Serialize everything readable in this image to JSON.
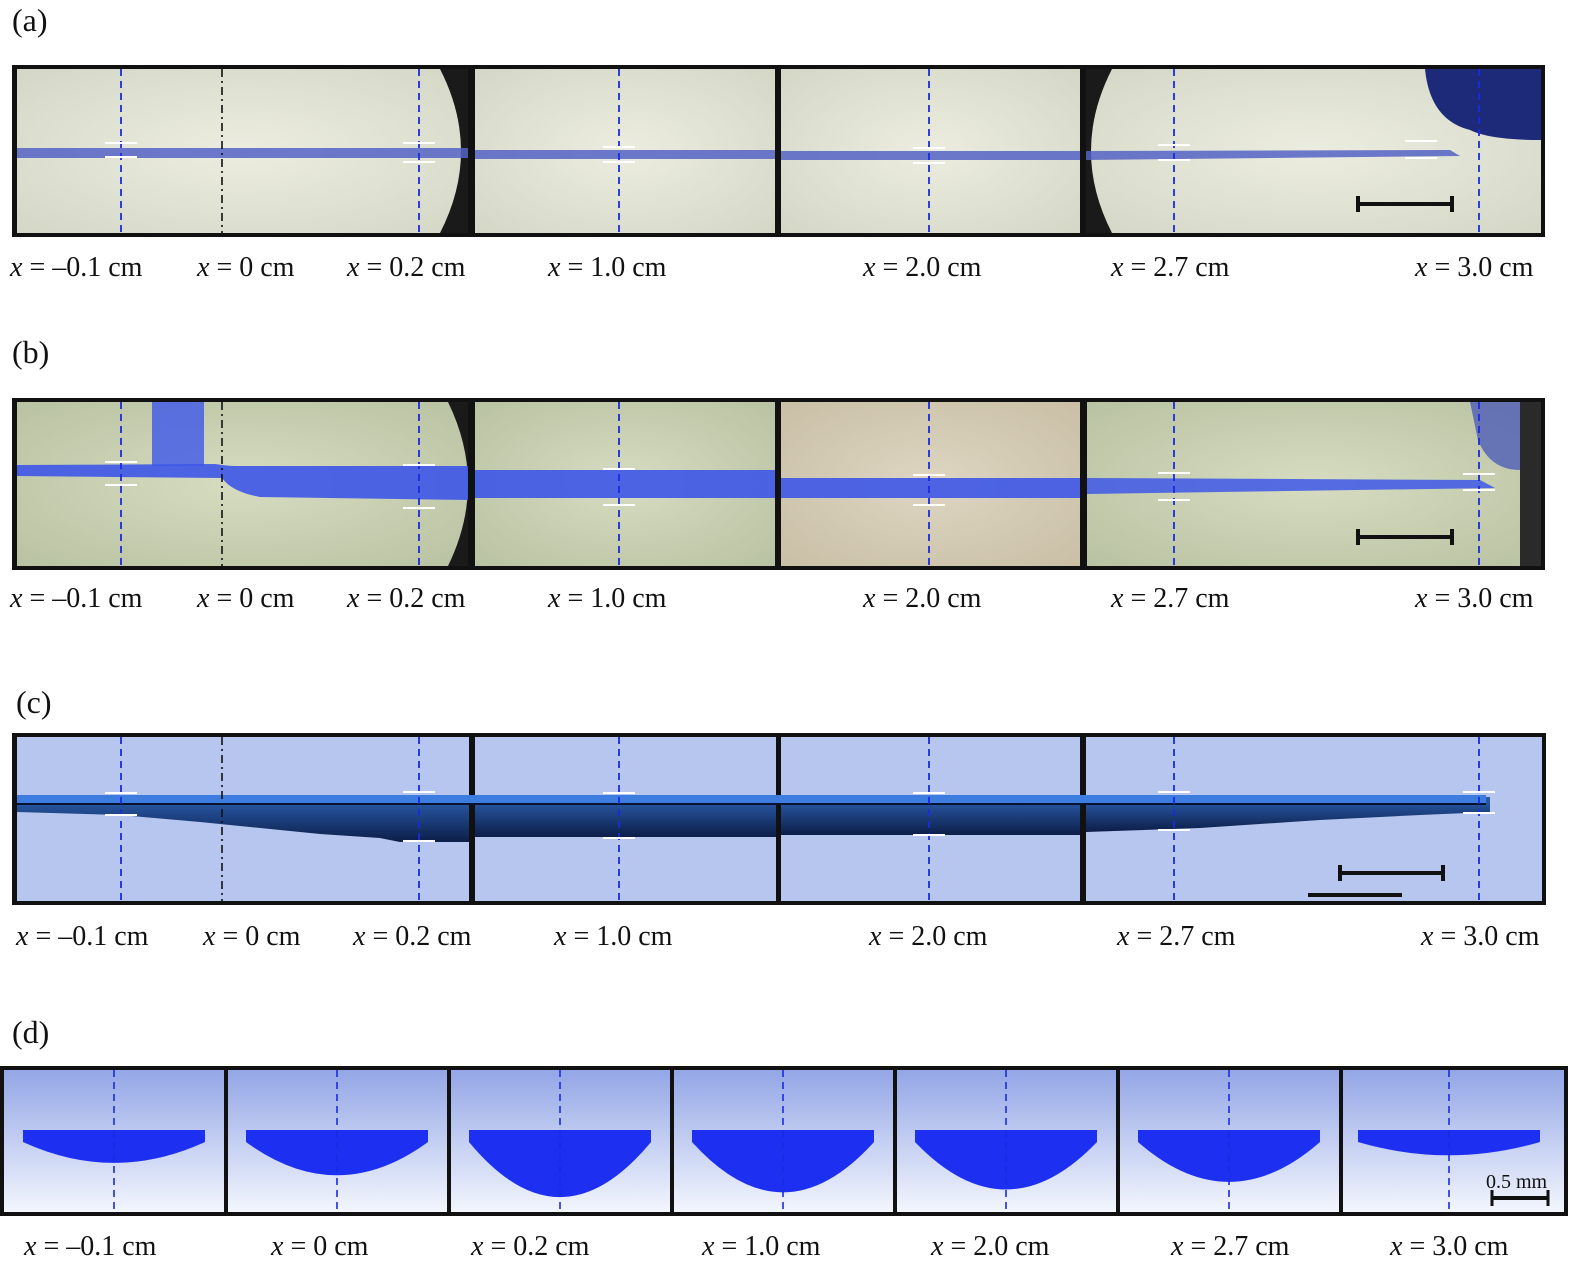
{
  "panels": [
    {
      "id": "a",
      "label": "(a)"
    },
    {
      "id": "b",
      "label": "(b)"
    },
    {
      "id": "c",
      "label": "(c)"
    },
    {
      "id": "d",
      "label": "(d)"
    }
  ],
  "position_var": "x",
  "position_units": "cm",
  "positions": [
    "–0.1",
    "0",
    "0.2",
    "1.0",
    "2.0",
    "2.7",
    "3.0"
  ],
  "scale_bar_label": "0.5 mm",
  "colors": {
    "dye_blue": "#3b4de8",
    "sim_fluid": "#1f3a8a",
    "sim_bg": "#b7c6ef",
    "cross_section": "#1d2ff0",
    "guide_line": "#1a2be0",
    "origin_line": "#111111"
  }
}
